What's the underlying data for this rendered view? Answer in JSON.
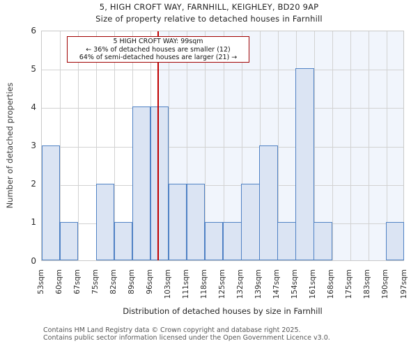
{
  "title": "5, HIGH CROFT WAY, FARNHILL, KEIGHLEY, BD20 9AP",
  "subtitle": "Size of property relative to detached houses in Farnhill",
  "annotation": {
    "line1": "5 HIGH CROFT WAY: 99sqm",
    "line2": "← 36% of detached houses are smaller (12)",
    "line3": "64% of semi-detached houses are larger (21) →"
  },
  "chart_data": {
    "type": "bar",
    "title": "Size of property relative to detached houses in Farnhill",
    "xlabel": "Distribution of detached houses by size in Farnhill",
    "ylabel": "Number of detached properties",
    "bin_edges_sqm": [
      53,
      60,
      67,
      75,
      82,
      89,
      96,
      103,
      111,
      118,
      125,
      132,
      139,
      147,
      154,
      161,
      168,
      175,
      183,
      190,
      197
    ],
    "x_tick_labels": [
      "53sqm",
      "60sqm",
      "67sqm",
      "75sqm",
      "82sqm",
      "89sqm",
      "96sqm",
      "103sqm",
      "111sqm",
      "118sqm",
      "125sqm",
      "132sqm",
      "139sqm",
      "147sqm",
      "154sqm",
      "161sqm",
      "168sqm",
      "175sqm",
      "183sqm",
      "190sqm",
      "197sqm"
    ],
    "counts": [
      3,
      1,
      0,
      2,
      1,
      4,
      4,
      2,
      2,
      1,
      1,
      2,
      3,
      1,
      5,
      1,
      0,
      0,
      0,
      1
    ],
    "ylim": [
      0,
      6
    ],
    "y_ticks": [
      "0",
      "1",
      "2",
      "3",
      "4",
      "5",
      "6"
    ],
    "grid": true,
    "marker_value_sqm": 99,
    "shaded_region": "right-of-marker"
  },
  "footer": {
    "line1": "Contains HM Land Registry data © Crown copyright and database right 2025.",
    "line2": "Contains public sector information licensed under the Open Government Licence v3.0."
  },
  "colors": {
    "bar_fill": "#dbe4f3",
    "bar_border": "#4f81c4",
    "marker_line": "#c00000",
    "annotation_border": "#a00000",
    "shaded_region": "#f1f5fc",
    "grid": "#d2d2d2"
  }
}
